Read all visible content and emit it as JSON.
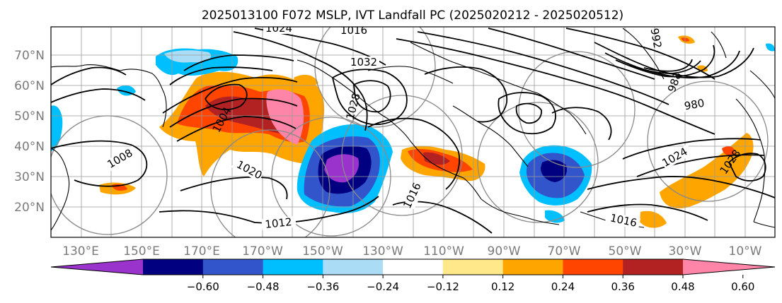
{
  "chart_data": {
    "type": "heatmap",
    "title": "2025013100 F072 MSLP, IVT Landfall PC (2025020212 - 2025020512)",
    "lat_labels": [
      "20°N",
      "30°N",
      "40°N",
      "50°N",
      "60°N",
      "70°N"
    ],
    "lat_values": [
      20,
      30,
      40,
      50,
      60,
      70
    ],
    "lon_labels": [
      "130°E",
      "150°E",
      "170°E",
      "170°W",
      "150°W",
      "130°W",
      "110°W",
      "90°W",
      "70°W",
      "50°W",
      "30°W",
      "10°W"
    ],
    "lon_values": [
      130,
      150,
      170,
      190,
      210,
      230,
      250,
      270,
      290,
      310,
      330,
      350
    ],
    "lon_range_east": [
      120,
      360
    ],
    "lat_range": [
      10,
      80
    ],
    "grid": true,
    "colorbar": {
      "orientation": "horizontal",
      "extend": "both",
      "ticks": [
        "−0.60",
        "−0.48",
        "−0.36",
        "−0.24",
        "−0.12",
        "0.12",
        "0.24",
        "0.36",
        "0.48",
        "0.60"
      ],
      "colors": [
        "#9933cc",
        "#000080",
        "#3355cc",
        "#00bfff",
        "#aadcf5",
        "#ffffff",
        "#ffe88a",
        "#ffa500",
        "#ff4500",
        "#b22222",
        "#ff85a8"
      ]
    },
    "contours": [
      {
        "value": 1024,
        "label": "1024",
        "lon": 203,
        "lat": 79
      },
      {
        "value": 1016,
        "label": "1016",
        "lon": 227,
        "lat": 78
      },
      {
        "value": 1032,
        "label": "1032",
        "lon": 233,
        "lat": 65
      },
      {
        "value": 1028,
        "label": "1028",
        "lon": 229,
        "lat": 50
      },
      {
        "value": 1004,
        "label": "1004",
        "lon": 176,
        "lat": 46
      },
      {
        "value": 1008,
        "label": "1008",
        "lon": 143,
        "lat": 33
      },
      {
        "value": 1020,
        "label": "1020",
        "lon": 188,
        "lat": 32
      },
      {
        "value": 1012,
        "label": "1012",
        "lon": 199,
        "lat": 14
      },
      {
        "value": 1016,
        "label": "1016",
        "lon": 244,
        "lat": 25
      },
      {
        "value": 1016,
        "label": "1016",
        "lon": 315,
        "lat": 15
      },
      {
        "value": 1024,
        "label": "1024",
        "lon": 322,
        "lat": 35
      },
      {
        "value": 1028,
        "label": "1028",
        "lon": 345,
        "lat": 36
      },
      {
        "value": 980,
        "label": "980",
        "lon": 320,
        "lat": 53
      },
      {
        "value": 988,
        "label": "988",
        "lon": 334,
        "lat": 62
      },
      {
        "value": 992,
        "label": "992",
        "lon": 320,
        "lat": 75
      }
    ],
    "ivt_regions": [
      {
        "name": "North Pacific positive",
        "sign": "positive",
        "center_lon": 190,
        "center_lat": 48,
        "peak": 0.6
      },
      {
        "name": "Bering negative",
        "sign": "negative",
        "center_lon": 175,
        "center_lat": 70,
        "peak": -0.36
      },
      {
        "name": "Subtropical Pacific negative",
        "sign": "negative",
        "center_lon": 214,
        "center_lat": 33,
        "peak": -0.6
      },
      {
        "name": "Southwest US positive",
        "sign": "positive",
        "center_lon": 245,
        "center_lat": 36,
        "peak": 0.48
      },
      {
        "name": "Western Atlantic negative",
        "sign": "negative",
        "center_lon": 284,
        "center_lat": 31,
        "peak": -0.48
      },
      {
        "name": "Central Atlantic positive",
        "sign": "positive",
        "center_lon": 336,
        "center_lat": 30,
        "peak": 0.36
      }
    ]
  }
}
